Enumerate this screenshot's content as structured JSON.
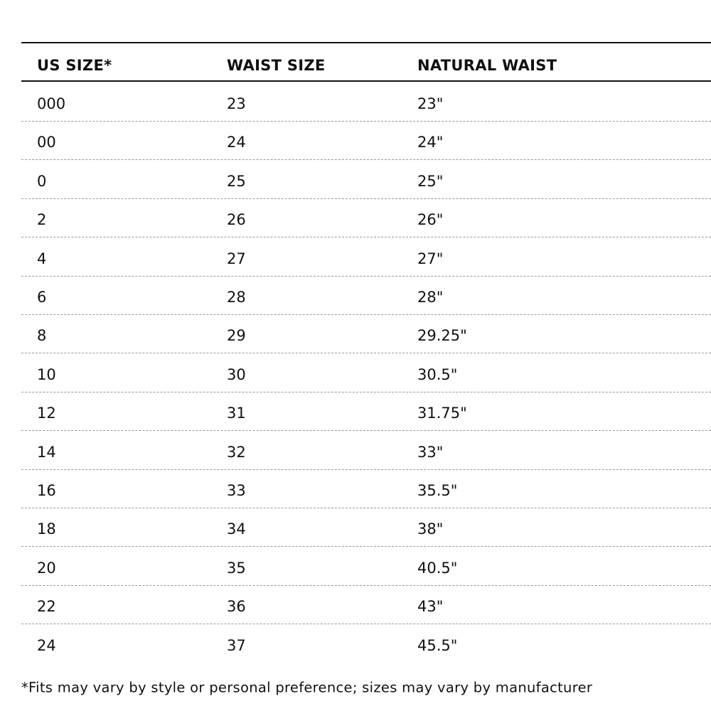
{
  "table": {
    "headers": [
      "US SIZE*",
      "WAIST SIZE",
      "NATURAL WAIST"
    ],
    "rows": [
      [
        "000",
        "23",
        "23\""
      ],
      [
        "00",
        "24",
        "24\""
      ],
      [
        "0",
        "25",
        "25\""
      ],
      [
        "2",
        "26",
        "26\""
      ],
      [
        "4",
        "27",
        "27\""
      ],
      [
        "6",
        "28",
        "28\""
      ],
      [
        "8",
        "29",
        "29.25\""
      ],
      [
        "10",
        "30",
        "30.5\""
      ],
      [
        "12",
        "31",
        "31.75\""
      ],
      [
        "14",
        "32",
        "33\""
      ],
      [
        "16",
        "33",
        "35.5\""
      ],
      [
        "18",
        "34",
        "38\""
      ],
      [
        "20",
        "35",
        "40.5\""
      ],
      [
        "22",
        "36",
        "43\""
      ],
      [
        "24",
        "37",
        "45.5\""
      ]
    ]
  },
  "footnote": "*Fits may vary by style or personal preference; sizes may vary by manufacturer"
}
